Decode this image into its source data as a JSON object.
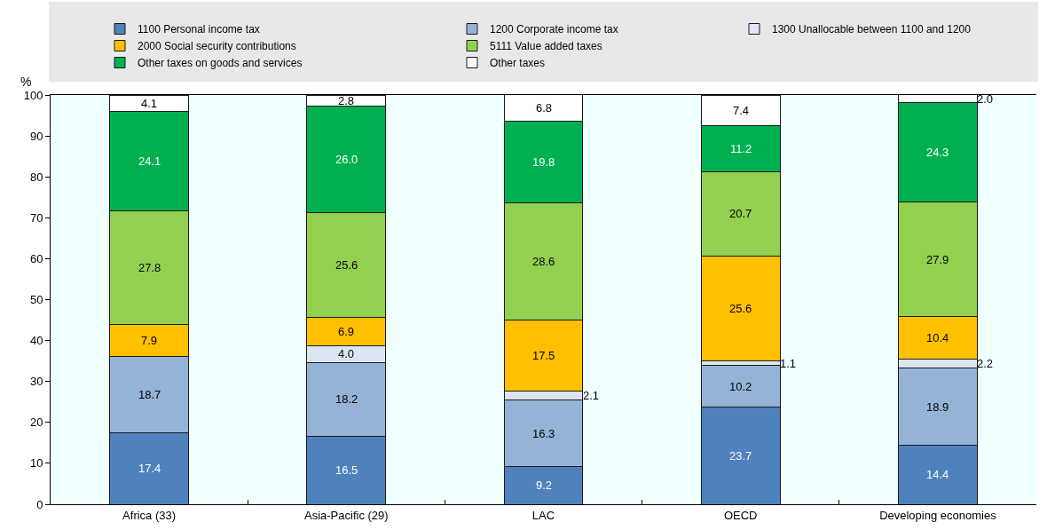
{
  "chart_data": {
    "type": "bar",
    "stacked": true,
    "ylabel": "%",
    "categories": [
      "Africa (33)",
      "Asia-Pacific (29)",
      "LAC",
      "OECD",
      "Developing economies"
    ],
    "series": [
      {
        "name": "1100 Personal income tax",
        "color": "#4f81bd",
        "values": [
          17.4,
          16.5,
          9.2,
          23.7,
          14.4
        ],
        "value_labels": [
          "17.4",
          "16.5",
          "9.2",
          "23.7",
          "14.4"
        ]
      },
      {
        "name": "1200 Corporate income tax",
        "color": "#95b3d7",
        "values": [
          18.7,
          18.2,
          16.3,
          10.2,
          18.9
        ],
        "value_labels": [
          "18.7",
          "18.2",
          "16.3",
          "10.2",
          "18.9"
        ]
      },
      {
        "name": "1300 Unallocable between 1100 and 1200",
        "color": "#dce6f2",
        "values": [
          null,
          4.0,
          2.1,
          1.1,
          2.2
        ],
        "value_labels": [
          null,
          "4.0",
          "2.1",
          "1.1",
          "2.2"
        ]
      },
      {
        "name": "2000 Social security contributions",
        "color": "#ffc000",
        "values": [
          7.9,
          6.9,
          17.5,
          25.6,
          10.4
        ],
        "value_labels": [
          "7.9",
          "6.9",
          "17.5",
          "25.6",
          "10.4"
        ]
      },
      {
        "name": "5111 Value added taxes",
        "color": "#92d050",
        "values": [
          27.8,
          25.6,
          28.6,
          20.7,
          27.9
        ],
        "value_labels": [
          "27.8",
          "25.6",
          "28.6",
          "20.7",
          "27.9"
        ]
      },
      {
        "name": "Other taxes on goods and services",
        "color": "#00b050",
        "values": [
          24.1,
          26.0,
          19.8,
          11.2,
          24.3
        ],
        "value_labels": [
          "24.1",
          "26.0",
          "19.8",
          "11.2",
          "24.3"
        ]
      },
      {
        "name": "Other taxes",
        "color": "#ffffff",
        "values": [
          4.1,
          2.8,
          6.8,
          7.4,
          2.0
        ],
        "value_labels": [
          "4.1",
          "2.8",
          "6.8",
          "7.4",
          "2.0"
        ]
      }
    ],
    "ylim": [
      0,
      100
    ],
    "yticks": [
      0,
      10,
      20,
      30,
      40,
      50,
      60,
      70,
      80,
      90,
      100
    ],
    "legend": "top"
  }
}
